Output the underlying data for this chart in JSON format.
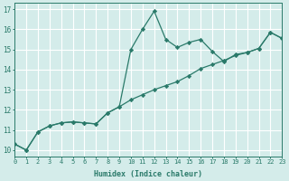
{
  "x": [
    0,
    1,
    2,
    3,
    4,
    5,
    6,
    7,
    8,
    9,
    10,
    11,
    12,
    13,
    14,
    15,
    16,
    17,
    18,
    19,
    20,
    21,
    22,
    23
  ],
  "y_zigzag": [
    10.3,
    10.0,
    10.9,
    11.2,
    11.35,
    11.4,
    11.35,
    11.3,
    11.85,
    12.15,
    15.0,
    16.0,
    16.9,
    15.5,
    15.1,
    15.35,
    15.5,
    14.9,
    14.4,
    14.75,
    14.85,
    15.05,
    15.85,
    15.55
  ],
  "y_trend": [
    10.3,
    10.0,
    10.9,
    11.2,
    11.35,
    11.4,
    11.35,
    11.3,
    11.85,
    12.15,
    12.5,
    12.75,
    13.0,
    13.2,
    13.4,
    13.7,
    14.05,
    14.25,
    14.45,
    14.7,
    14.85,
    15.05,
    15.85,
    15.55
  ],
  "xlim": [
    0,
    23
  ],
  "ylim": [
    9.7,
    17.3
  ],
  "yticks": [
    10,
    11,
    12,
    13,
    14,
    15,
    16,
    17
  ],
  "xticks": [
    0,
    1,
    2,
    3,
    4,
    5,
    6,
    7,
    8,
    9,
    10,
    11,
    12,
    13,
    14,
    15,
    16,
    17,
    18,
    19,
    20,
    21,
    22,
    23
  ],
  "xlabel": "Humidex (Indice chaleur)",
  "line_color": "#2a7a6a",
  "bg_color": "#d4ecea",
  "grid_color": "#ffffff",
  "marker": "D",
  "marker_size": 2.2,
  "linewidth": 0.9,
  "tick_fontsize": 5.0,
  "xlabel_fontsize": 6.0
}
